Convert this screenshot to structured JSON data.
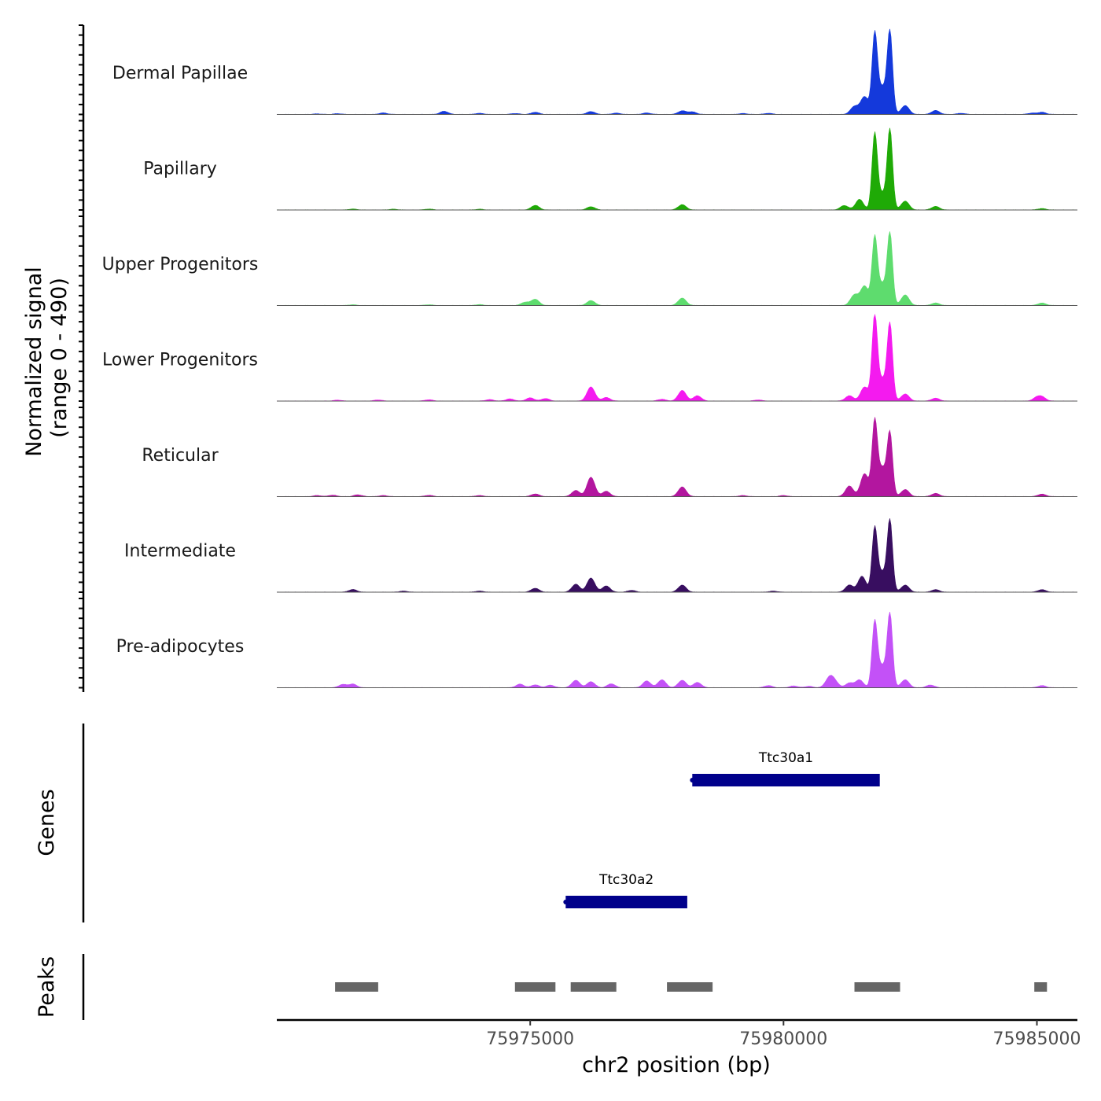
{
  "chart_data": {
    "type": "area",
    "title": "",
    "region": "chr2:75970000-75986000",
    "xlabel": "chr2 position (bp)",
    "ylabel": "Normalized signal",
    "ylabel_sub": "(range 0 - 490)",
    "xlim": [
      75970000,
      75985800
    ],
    "ylim": [
      0,
      490
    ],
    "x_ticks": [
      75975000,
      75980000,
      75985000
    ],
    "x_tick_labels": [
      "75975000",
      "75980000",
      "75985000"
    ],
    "series": [
      {
        "name": "Dermal Papillae",
        "color": "#1439DB",
        "peaks": [
          [
            75970800,
            3
          ],
          [
            75971200,
            4
          ],
          [
            75972100,
            8
          ],
          [
            75973300,
            18
          ],
          [
            75974000,
            6
          ],
          [
            75974700,
            5
          ],
          [
            75975100,
            12
          ],
          [
            75976200,
            16
          ],
          [
            75976700,
            7
          ],
          [
            75977300,
            8
          ],
          [
            75978000,
            20
          ],
          [
            75978200,
            14
          ],
          [
            75979200,
            5
          ],
          [
            75979700,
            6
          ],
          [
            75981400,
            45
          ],
          [
            75981600,
            100
          ],
          [
            75981800,
            450
          ],
          [
            75981950,
            150
          ],
          [
            75982100,
            460
          ],
          [
            75982400,
            50
          ],
          [
            75983000,
            22
          ],
          [
            75983500,
            6
          ],
          [
            75984900,
            7
          ],
          [
            75985100,
            12
          ]
        ]
      },
      {
        "name": "Papillary",
        "color": "#1FAA06",
        "peaks": [
          [
            75971500,
            5
          ],
          [
            75972300,
            4
          ],
          [
            75973000,
            5
          ],
          [
            75974000,
            4
          ],
          [
            75975100,
            26
          ],
          [
            75976200,
            18
          ],
          [
            75978000,
            30
          ],
          [
            75981200,
            25
          ],
          [
            75981500,
            60
          ],
          [
            75981800,
            430
          ],
          [
            75981950,
            90
          ],
          [
            75982100,
            450
          ],
          [
            75982400,
            50
          ],
          [
            75983000,
            20
          ],
          [
            75985100,
            8
          ]
        ]
      },
      {
        "name": "Upper Progenitors",
        "color": "#5EDC6E",
        "peaks": [
          [
            75971500,
            4
          ],
          [
            75973000,
            4
          ],
          [
            75974000,
            5
          ],
          [
            75975100,
            35
          ],
          [
            75974900,
            18
          ],
          [
            75976200,
            28
          ],
          [
            75978000,
            42
          ],
          [
            75981400,
            60
          ],
          [
            75981600,
            110
          ],
          [
            75981800,
            380
          ],
          [
            75981950,
            120
          ],
          [
            75982100,
            400
          ],
          [
            75982400,
            60
          ],
          [
            75983000,
            14
          ],
          [
            75985100,
            14
          ]
        ]
      },
      {
        "name": "Lower Progenitors",
        "color": "#F41AEF",
        "peaks": [
          [
            75971200,
            5
          ],
          [
            75972000,
            6
          ],
          [
            75973000,
            7
          ],
          [
            75974200,
            8
          ],
          [
            75974600,
            12
          ],
          [
            75975000,
            18
          ],
          [
            75975300,
            14
          ],
          [
            75976200,
            80
          ],
          [
            75976500,
            20
          ],
          [
            75977600,
            10
          ],
          [
            75978000,
            60
          ],
          [
            75978300,
            30
          ],
          [
            75979500,
            6
          ],
          [
            75981300,
            30
          ],
          [
            75981600,
            80
          ],
          [
            75981800,
            480
          ],
          [
            75981950,
            120
          ],
          [
            75982100,
            430
          ],
          [
            75982400,
            40
          ],
          [
            75983000,
            16
          ],
          [
            75985000,
            18
          ],
          [
            75985100,
            20
          ]
        ]
      },
      {
        "name": "Reticular",
        "color": "#B3169F",
        "peaks": [
          [
            75970800,
            6
          ],
          [
            75971100,
            8
          ],
          [
            75971600,
            10
          ],
          [
            75972100,
            6
          ],
          [
            75973000,
            7
          ],
          [
            75974000,
            6
          ],
          [
            75975100,
            15
          ],
          [
            75975900,
            35
          ],
          [
            75976200,
            110
          ],
          [
            75976500,
            30
          ],
          [
            75978000,
            55
          ],
          [
            75979200,
            6
          ],
          [
            75980000,
            6
          ],
          [
            75981300,
            60
          ],
          [
            75981600,
            130
          ],
          [
            75981800,
            420
          ],
          [
            75981950,
            160
          ],
          [
            75982100,
            350
          ],
          [
            75982400,
            40
          ],
          [
            75983000,
            18
          ],
          [
            75985100,
            14
          ]
        ]
      },
      {
        "name": "Intermediate",
        "color": "#380E60",
        "peaks": [
          [
            75971500,
            15
          ],
          [
            75972500,
            6
          ],
          [
            75974000,
            6
          ],
          [
            75975100,
            22
          ],
          [
            75975900,
            45
          ],
          [
            75976200,
            80
          ],
          [
            75976500,
            35
          ],
          [
            75977000,
            10
          ],
          [
            75978000,
            40
          ],
          [
            75979800,
            6
          ],
          [
            75981300,
            40
          ],
          [
            75981550,
            90
          ],
          [
            75981800,
            360
          ],
          [
            75981950,
            110
          ],
          [
            75982100,
            400
          ],
          [
            75982400,
            40
          ],
          [
            75983000,
            14
          ],
          [
            75985100,
            14
          ]
        ]
      },
      {
        "name": "Pre-adipocytes",
        "color": "#C351F7",
        "peaks": [
          [
            75971300,
            18
          ],
          [
            75971500,
            20
          ],
          [
            75974800,
            20
          ],
          [
            75975100,
            16
          ],
          [
            75975400,
            14
          ],
          [
            75975900,
            42
          ],
          [
            75976200,
            34
          ],
          [
            75976600,
            22
          ],
          [
            75977300,
            38
          ],
          [
            75977600,
            45
          ],
          [
            75978000,
            42
          ],
          [
            75978300,
            30
          ],
          [
            75979700,
            12
          ],
          [
            75980200,
            10
          ],
          [
            75980500,
            8
          ],
          [
            75980900,
            50
          ],
          [
            75981000,
            35
          ],
          [
            75981300,
            26
          ],
          [
            75981500,
            44
          ],
          [
            75981800,
            370
          ],
          [
            75981950,
            120
          ],
          [
            75982100,
            410
          ],
          [
            75982400,
            45
          ],
          [
            75982900,
            15
          ],
          [
            75985100,
            12
          ]
        ]
      }
    ],
    "genes": [
      {
        "name": "Ttc30a1",
        "start": 75978200,
        "end": 75981900
      },
      {
        "name": "Ttc30a2",
        "start": 75975700,
        "end": 75978100
      }
    ],
    "genes_track_label": "Genes",
    "peaks_track_label": "Peaks",
    "peak_regions": [
      [
        75971150,
        75972000
      ],
      [
        75974700,
        75975500
      ],
      [
        75975800,
        75976700
      ],
      [
        75977700,
        75978600
      ],
      [
        75981400,
        75982300
      ],
      [
        75984950,
        75985200
      ]
    ]
  },
  "style": {
    "peak_bar_color": "#666666",
    "gene_color": "#00008B",
    "axis_color": "#000000",
    "baseline_color": "#555555"
  }
}
